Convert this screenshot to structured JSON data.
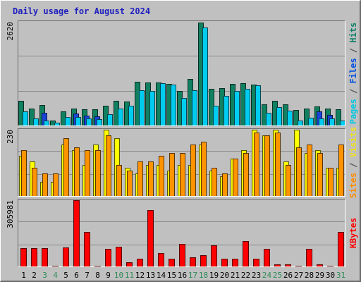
{
  "chart_data": {
    "type": "bar",
    "title": "Daily usage for August 2024",
    "categories": [
      "1",
      "2",
      "3",
      "4",
      "5",
      "6",
      "7",
      "8",
      "9",
      "10",
      "11",
      "12",
      "13",
      "14",
      "15",
      "16",
      "17",
      "18",
      "19",
      "20",
      "21",
      "22",
      "23",
      "24",
      "25",
      "26",
      "27",
      "28",
      "29",
      "30",
      "31"
    ],
    "weekend_days": [
      "3",
      "4",
      "10",
      "11",
      "17",
      "18",
      "24",
      "25",
      "31"
    ],
    "panels": [
      {
        "name": "pages-files-hits",
        "ymax_label": "2620",
        "ymax": 2620,
        "legend": [
          {
            "text": "Pages",
            "color": "#00c8e0"
          },
          {
            "text": " / ",
            "color": "#505050"
          },
          {
            "text": "Files",
            "color": "#0050e0"
          },
          {
            "text": " / ",
            "color": "#505050"
          },
          {
            "text": "Hits",
            "color": "#10806a"
          }
        ],
        "series": [
          {
            "name": "Hits",
            "color": "#108060",
            "values": [
              640,
              450,
              530,
              140,
              370,
              450,
              430,
              420,
              510,
              630,
              620,
              1110,
              1100,
              1090,
              1060,
              880,
              1190,
              2600,
              930,
              960,
              1060,
              1080,
              1040,
              550,
              640,
              540,
              400,
              440,
              490,
              440,
              420
            ]
          },
          {
            "name": "Files",
            "color": "#1a44d8",
            "values": [
              0,
              0,
              340,
              0,
              0,
              310,
              270,
              240,
              0,
              0,
              0,
              0,
              0,
              0,
              0,
              0,
              0,
              0,
              0,
              0,
              0,
              0,
              0,
              0,
              0,
              0,
              0,
              0,
              380,
              290,
              0
            ]
          },
          {
            "name": "Pages",
            "color": "#00ccf0",
            "values": [
              370,
              190,
              150,
              90,
              230,
              230,
              200,
              180,
              300,
              450,
              510,
              900,
              880,
              1080,
              1050,
              710,
              900,
              2480,
              510,
              770,
              890,
              930,
              1020,
              330,
              470,
              390,
              140,
              210,
              200,
              190,
              140
            ]
          }
        ]
      },
      {
        "name": "visits-sites",
        "ymax_label": "230",
        "ymax": 230,
        "legend": [
          {
            "text": "Sites",
            "color": "#ff8c00"
          },
          {
            "text": " / ",
            "color": "#505050"
          },
          {
            "text": "Visits",
            "color": "#f0e020"
          }
        ],
        "series": [
          {
            "name": "Visits",
            "color": "#ffff00",
            "values": [
              140,
              120,
              50,
              50,
              180,
              160,
              110,
              180,
              230,
              200,
              100,
              80,
              110,
              110,
              90,
              110,
              110,
              180,
              90,
              70,
              130,
              160,
              230,
              210,
              230,
              120,
              230,
              150,
              160,
              100,
              100
            ]
          },
          {
            "name": "Sites",
            "color": "#ff9400",
            "values": [
              160,
              100,
              80,
              80,
              200,
              170,
              160,
              160,
              210,
              110,
              90,
              120,
              120,
              140,
              150,
              150,
              180,
              190,
              100,
              80,
              130,
              150,
              220,
              210,
              220,
              110,
              170,
              180,
              150,
              100,
              180
            ]
          }
        ]
      },
      {
        "name": "kbytes",
        "ymax_label": "305981",
        "ymax": 305981,
        "legend": [
          {
            "text": "KBytes",
            "color": "#ff0000"
          }
        ],
        "series": [
          {
            "name": "KBytes",
            "color": "#ff0000",
            "values": [
              87000,
              87000,
              87000,
              8000,
              90000,
              305981,
              162000,
              8000,
              83000,
              95000,
              24000,
              38000,
              260000,
              65000,
              40000,
              106000,
              45000,
              56000,
              100000,
              38000,
              38000,
              120000,
              38000,
              83000,
              12000,
              12000,
              8000,
              84000,
              12000,
              8000,
              162000
            ]
          }
        ]
      }
    ]
  }
}
